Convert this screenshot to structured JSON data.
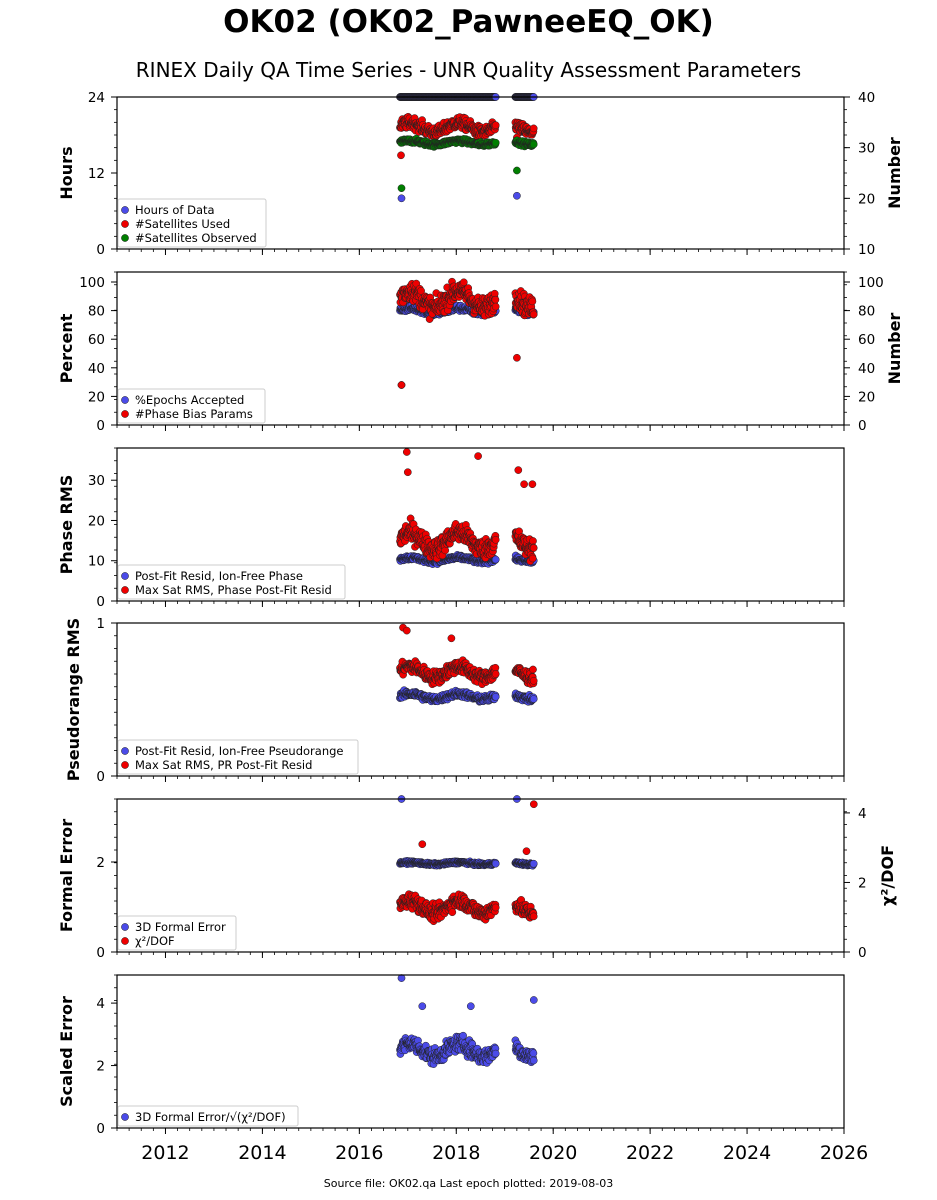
{
  "title": "OK02 (OK02_PawneeEQ_OK)",
  "subtitle": "RINEX Daily QA Time Series - UNR Quality Assessment Parameters",
  "footer": "Source file: OK02.qa Last epoch plotted: 2019-08-03",
  "colors": {
    "blue": "#4b4be8",
    "red": "#ee0000",
    "green": "#007f00"
  },
  "chart_data": [
    {
      "type": "scatter",
      "xlim": [
        2011.0,
        2026.0
      ],
      "x_ticks": [
        "2012",
        "2014",
        "2016",
        "2018",
        "2020",
        "2022",
        "2024",
        "2026"
      ],
      "ylabel": "Hours",
      "ylim": [
        0,
        24
      ],
      "y_ticks": [
        "0",
        "12",
        "24"
      ],
      "y2label": "Number",
      "y2lim": [
        10,
        40
      ],
      "y2_ticks": [
        "10",
        "20",
        "30",
        "40"
      ],
      "legend_position": "lower-left",
      "series": [
        {
          "name": "Hours of Data",
          "color": "blue",
          "axis": "left",
          "typical": 24,
          "spread": 0,
          "outliers": [
            [
              2016.87,
              8
            ],
            [
              2019.25,
              8.4
            ]
          ]
        },
        {
          "name": "#Satellites Used",
          "color": "red",
          "axis": "right",
          "typical": 34,
          "spread": 1.6,
          "outliers": [
            [
              2016.86,
              28.5
            ],
            [
              2019.25,
              32
            ]
          ]
        },
        {
          "name": "#Satellites Observed",
          "color": "green",
          "axis": "right",
          "typical": 31,
          "spread": 0.6,
          "outliers": [
            [
              2016.87,
              22
            ],
            [
              2019.25,
              25.5
            ]
          ]
        }
      ]
    },
    {
      "type": "scatter",
      "xlim": [
        2011.0,
        2026.0
      ],
      "x_ticks": [
        "2012",
        "2014",
        "2016",
        "2018",
        "2020",
        "2022",
        "2024",
        "2026"
      ],
      "ylabel": "Percent",
      "ylim": [
        0,
        107
      ],
      "y_ticks": [
        "0",
        "20",
        "40",
        "60",
        "80",
        "100"
      ],
      "y2label": "Number",
      "y2lim": [
        0,
        107
      ],
      "y2_ticks": [
        "0",
        "20",
        "40",
        "60",
        "80",
        "100"
      ],
      "legend_position": "lower-left",
      "series": [
        {
          "name": "%Epochs Accepted",
          "color": "blue",
          "axis": "left",
          "typical": 80,
          "spread": 3,
          "outliers": [
            [
              2016.87,
              28
            ]
          ]
        },
        {
          "name": "#Phase Bias Params",
          "color": "red",
          "axis": "right",
          "typical": 88,
          "spread": 10,
          "outliers": [
            [
              2016.87,
              28
            ],
            [
              2019.25,
              47
            ]
          ]
        }
      ]
    },
    {
      "type": "scatter",
      "xlim": [
        2011.0,
        2026.0
      ],
      "x_ticks": [
        "2012",
        "2014",
        "2016",
        "2018",
        "2020",
        "2022",
        "2024",
        "2026"
      ],
      "ylabel": "Phase RMS",
      "ylim": [
        0,
        38
      ],
      "y_ticks": [
        "0",
        "10",
        "20",
        "30"
      ],
      "legend_position": "lower-left",
      "series": [
        {
          "name": "Post-Fit Resid, Ion-Free Phase",
          "color": "blue",
          "axis": "left",
          "typical": 10.3,
          "spread": 0.8,
          "outliers": []
        },
        {
          "name": "Max Sat RMS, Phase Post-Fit Resid",
          "color": "red",
          "axis": "left",
          "typical": 15,
          "spread": 3.5,
          "outliers": [
            [
              2016.98,
              37
            ],
            [
              2018.45,
              36
            ],
            [
              2017.0,
              32
            ],
            [
              2019.28,
              32.5
            ],
            [
              2019.4,
              29
            ],
            [
              2019.57,
              29
            ]
          ]
        }
      ]
    },
    {
      "type": "scatter",
      "xlim": [
        2011.0,
        2026.0
      ],
      "x_ticks": [
        "2012",
        "2014",
        "2016",
        "2018",
        "2020",
        "2022",
        "2024",
        "2026"
      ],
      "ylabel": "Pseudorange RMS",
      "ylim": [
        0,
        1.0
      ],
      "y_ticks": [
        "0",
        "1"
      ],
      "legend_position": "lower-left",
      "series": [
        {
          "name": "Post-Fit Resid, Ion-Free Pseudorange",
          "color": "blue",
          "axis": "left",
          "typical": 0.52,
          "spread": 0.03,
          "outliers": []
        },
        {
          "name": "Max Sat RMS, PR Post-Fit Resid",
          "color": "red",
          "axis": "left",
          "typical": 0.68,
          "spread": 0.06,
          "outliers": [
            [
              2016.9,
              0.97
            ],
            [
              2016.98,
              0.95
            ],
            [
              2017.9,
              0.9
            ]
          ]
        }
      ]
    },
    {
      "type": "scatter",
      "xlim": [
        2011.0,
        2026.0
      ],
      "x_ticks": [
        "2012",
        "2014",
        "2016",
        "2018",
        "2020",
        "2022",
        "2024",
        "2026"
      ],
      "ylabel": "Formal Error",
      "ylim": [
        0,
        3.4
      ],
      "y_ticks": [
        "0",
        "2"
      ],
      "y2label": "χ²/DOF",
      "y2lim": [
        0,
        4.4
      ],
      "y2_ticks": [
        "0",
        "2",
        "4"
      ],
      "legend_position": "lower-left",
      "series": [
        {
          "name": "3D Formal Error",
          "color": "blue",
          "axis": "left",
          "typical": 1.97,
          "spread": 0.04,
          "outliers": [
            [
              2016.87,
              3.4
            ],
            [
              2019.25,
              3.4
            ]
          ]
        },
        {
          "name": "χ²/DOF",
          "color": "red",
          "axis": "right",
          "typical": 1.3,
          "spread": 0.3,
          "outliers": [
            [
              2019.6,
              4.25
            ],
            [
              2017.3,
              3.1
            ],
            [
              2019.45,
              2.9
            ]
          ]
        }
      ]
    },
    {
      "type": "scatter",
      "xlim": [
        2011.0,
        2026.0
      ],
      "x_ticks": [
        "2012",
        "2014",
        "2016",
        "2018",
        "2020",
        "2022",
        "2024",
        "2026"
      ],
      "ylabel": "Scaled Error",
      "ylim": [
        0,
        4.9
      ],
      "y_ticks": [
        "0",
        "2",
        "4"
      ],
      "legend_position": "lower-left",
      "series": [
        {
          "name": "3D Formal Error/√(χ²/DOF)",
          "color": "blue",
          "axis": "left",
          "typical": 2.5,
          "spread": 0.35,
          "outliers": [
            [
              2016.87,
              4.8
            ],
            [
              2019.6,
              4.1
            ],
            [
              2017.3,
              3.9
            ],
            [
              2018.3,
              3.9
            ]
          ]
        }
      ]
    }
  ]
}
